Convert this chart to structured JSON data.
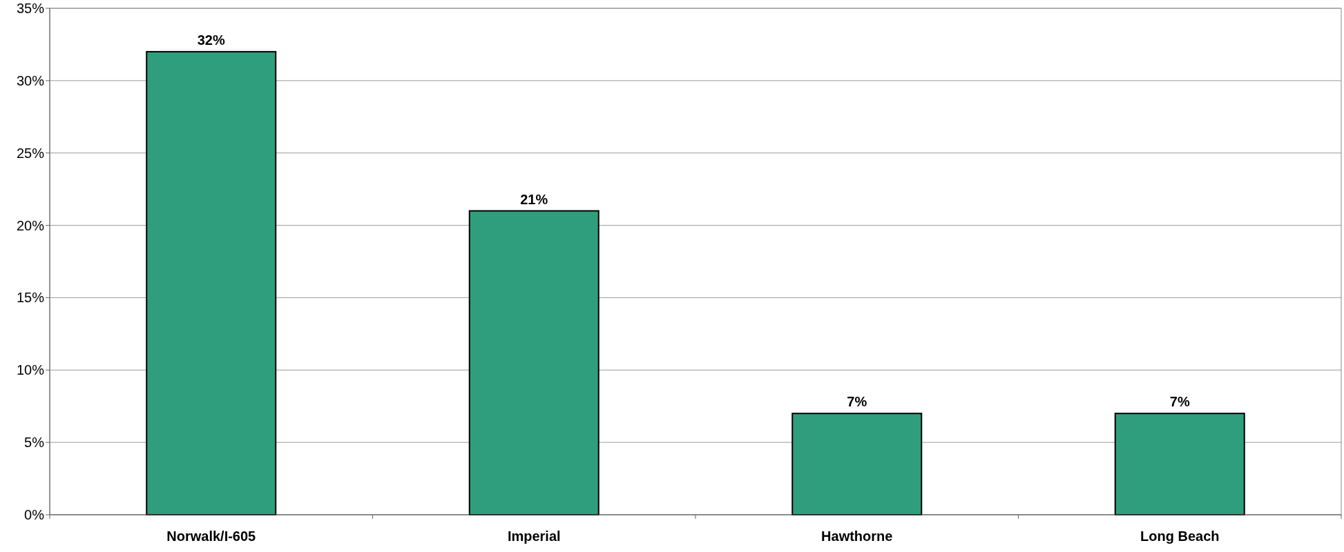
{
  "chart_data": {
    "type": "bar",
    "categories": [
      "Norwalk/I-605",
      "Imperial",
      "Hawthorne",
      "Long Beach"
    ],
    "values": [
      32,
      21,
      7,
      7
    ],
    "color": "#2f9e7c",
    "ylim": [
      0,
      35
    ],
    "yticks": [
      {
        "value": 0,
        "label": "0%"
      },
      {
        "value": 5,
        "label": "5%"
      },
      {
        "value": 10,
        "label": "10%"
      },
      {
        "value": 15,
        "label": "15%"
      },
      {
        "value": 20,
        "label": "20%"
      },
      {
        "value": 25,
        "label": "25%"
      },
      {
        "value": 30,
        "label": "30%"
      },
      {
        "value": 35,
        "label": "35%"
      }
    ],
    "grid": "y",
    "value_labels": [
      "32%",
      "21%",
      "7%",
      "7%"
    ]
  }
}
